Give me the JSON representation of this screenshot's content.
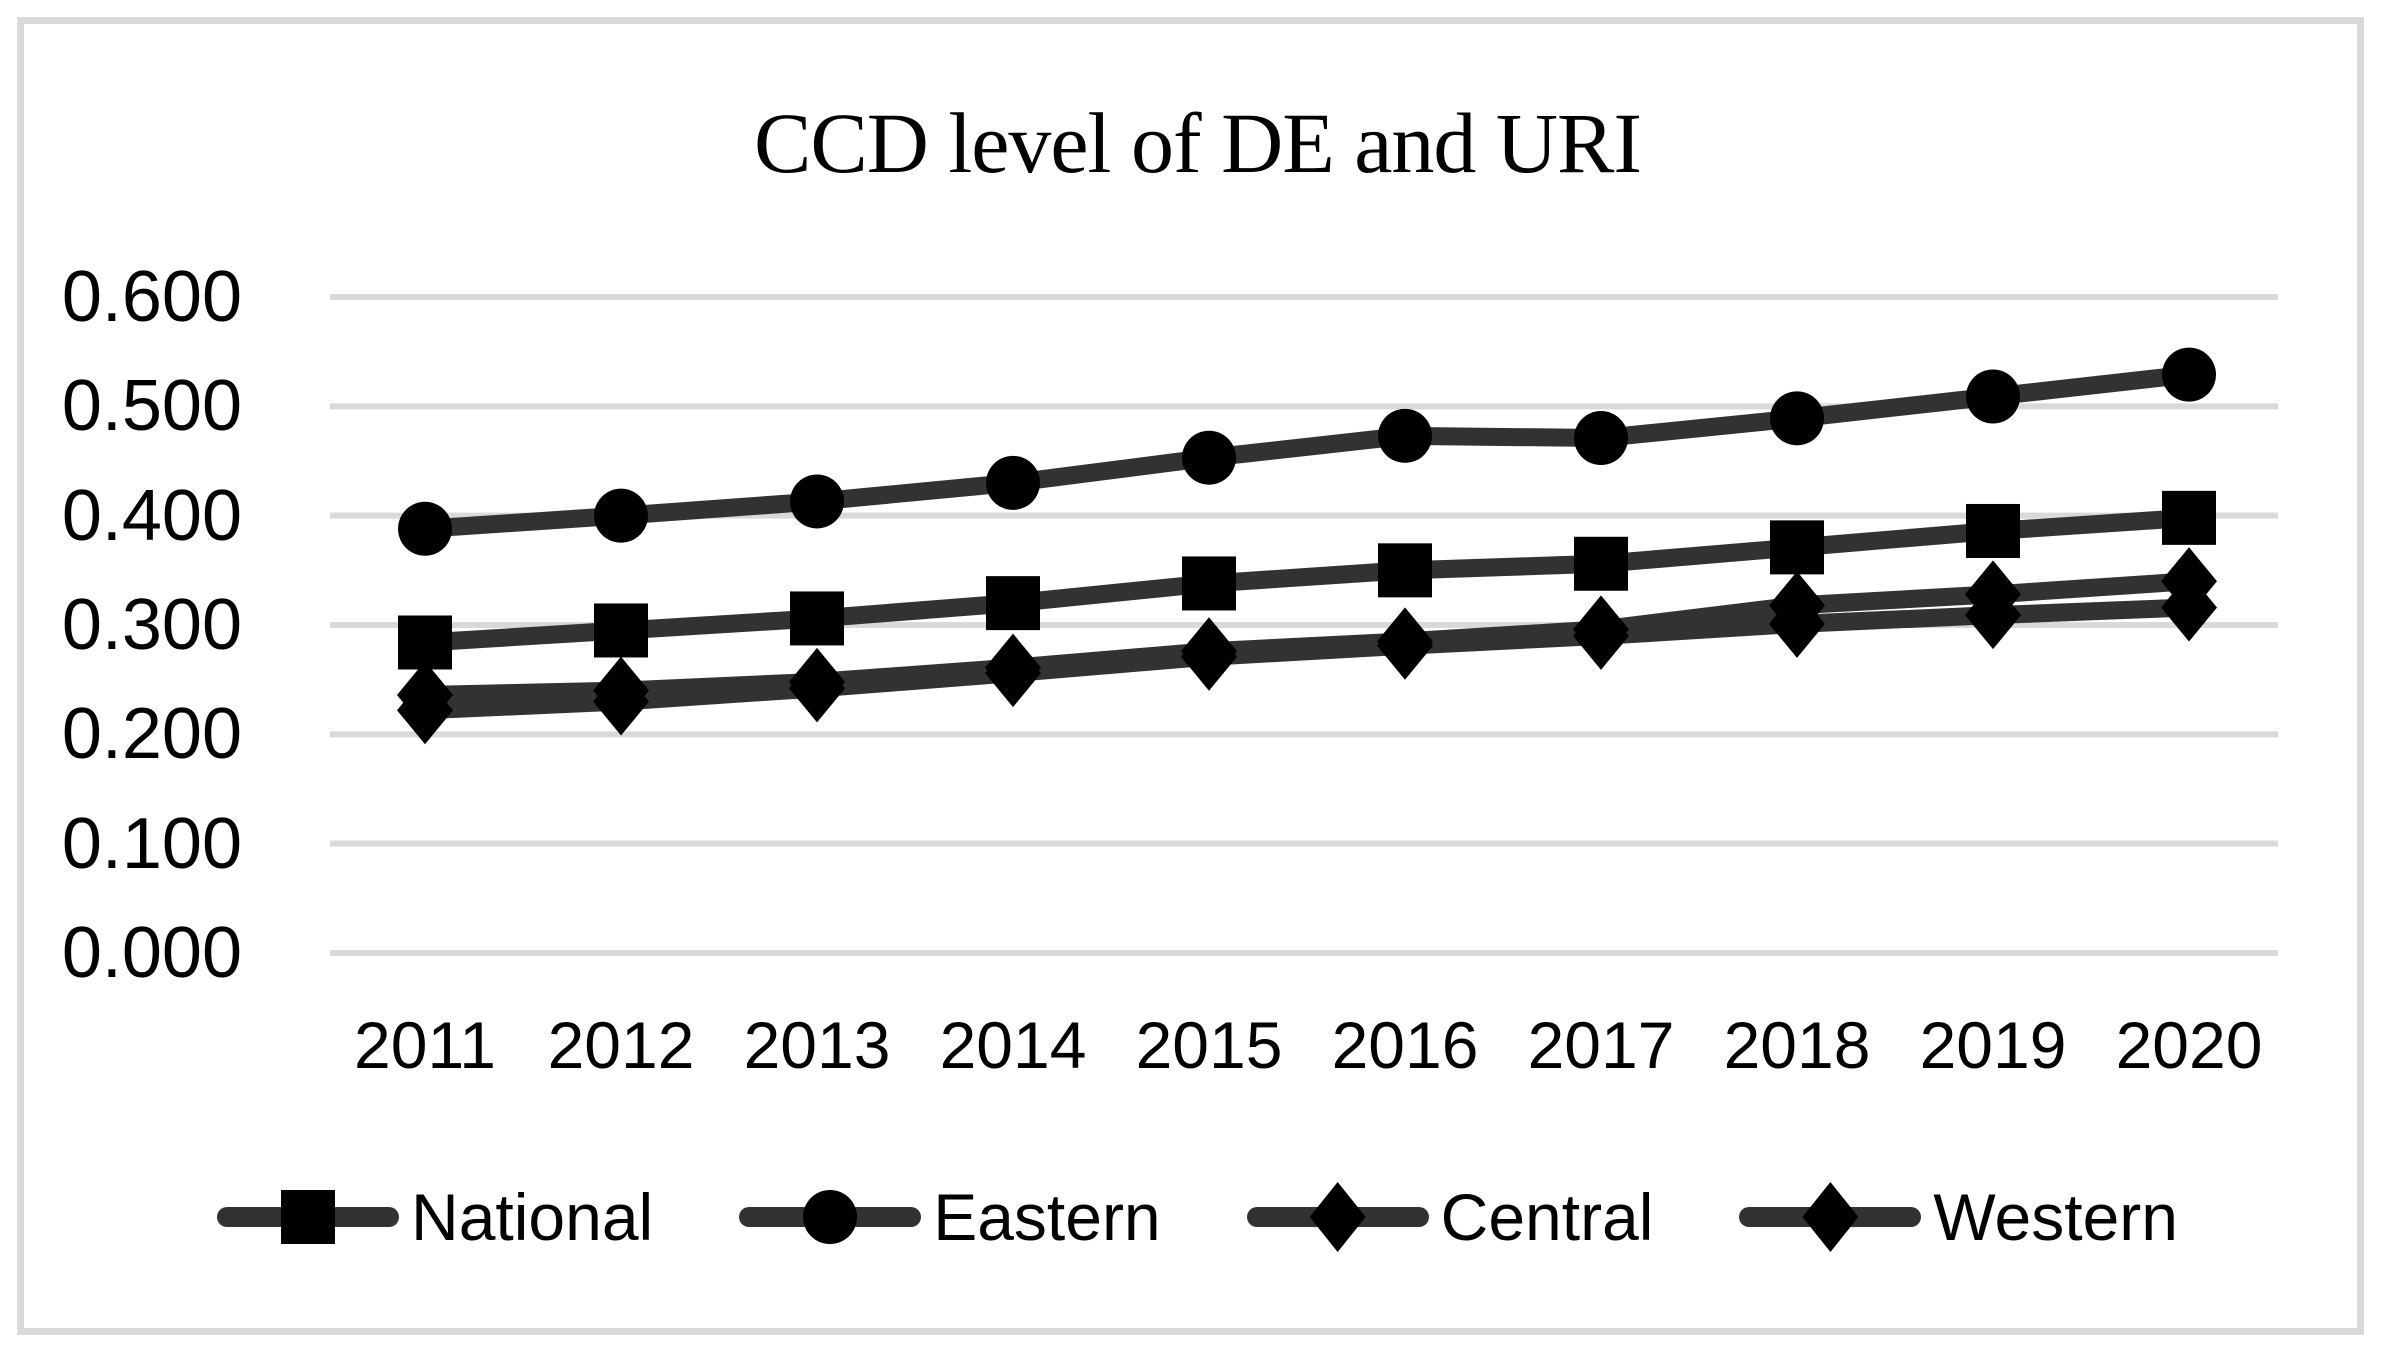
{
  "figure": {
    "background": "#ffffff",
    "border_color": "#d9d9d9"
  },
  "chart_data": {
    "type": "line",
    "title": "CCD level of DE and URI",
    "categories": [
      "2011",
      "2012",
      "2013",
      "2014",
      "2015",
      "2016",
      "2017",
      "2018",
      "2019",
      "2020"
    ],
    "series": [
      {
        "name": "National",
        "marker": "square",
        "values": [
          0.284,
          0.295,
          0.306,
          0.32,
          0.338,
          0.35,
          0.356,
          0.371,
          0.386,
          0.398
        ]
      },
      {
        "name": "Eastern",
        "marker": "circle",
        "values": [
          0.388,
          0.4,
          0.413,
          0.43,
          0.453,
          0.473,
          0.471,
          0.489,
          0.509,
          0.529
        ]
      },
      {
        "name": "Central",
        "marker": "diamond",
        "values": [
          0.236,
          0.24,
          0.248,
          0.261,
          0.276,
          0.285,
          0.296,
          0.318,
          0.328,
          0.34
        ]
      },
      {
        "name": "Western",
        "marker": "diamond",
        "values": [
          0.222,
          0.23,
          0.242,
          0.256,
          0.271,
          0.281,
          0.29,
          0.301,
          0.309,
          0.316
        ]
      }
    ],
    "ylim": [
      0.0,
      0.6
    ],
    "ytick_labels": [
      "0.600",
      "0.500",
      "0.400",
      "0.300",
      "0.200",
      "0.100",
      "0.000"
    ],
    "ytick_values": [
      0.6,
      0.5,
      0.4,
      0.3,
      0.2,
      0.1,
      0.0
    ],
    "grid": true,
    "legend_position": "bottom",
    "line_color": "#323232",
    "marker_color": "#000000",
    "gridline_color": "#d9d9d9",
    "text_color": "#000000"
  }
}
